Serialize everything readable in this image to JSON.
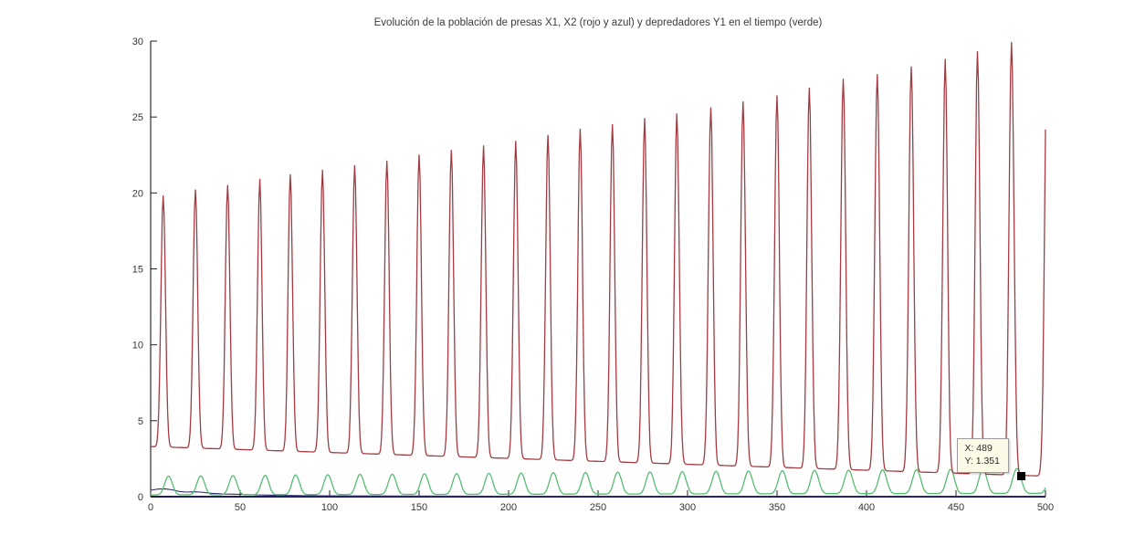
{
  "figure": {
    "title": "Evolución de la población de presas X1, X2 (rojo y azul) y depredadores Y1 en el tiempo (verde)",
    "background": "#ffffff"
  },
  "datatip": {
    "line1": "X: 489",
    "line2": "Y: 1.351",
    "background": "#fbfae6",
    "border_color": "#9c9c9c",
    "marker_color": "#000000"
  },
  "axes": {
    "x_tick_labels": [
      "0",
      "50",
      "100",
      "150",
      "200",
      "250",
      "300",
      "350",
      "400",
      "450",
      "500"
    ],
    "y_tick_labels": [
      "0",
      "5",
      "10",
      "15",
      "20",
      "25",
      "30"
    ],
    "axis_color": "#000000",
    "bottom_axis_color": "#1b1b67"
  },
  "chart_data": {
    "type": "line",
    "title": "Evolución de la población de presas X1, X2 (rojo y azul) y depredadores Y1 en el tiempo (verde)",
    "xlabel": "",
    "ylabel": "",
    "xlim": [
      0,
      500
    ],
    "ylim": [
      0,
      30
    ],
    "xticks": [
      0,
      50,
      100,
      150,
      200,
      250,
      300,
      350,
      400,
      450,
      500
    ],
    "yticks": [
      0,
      5,
      10,
      15,
      20,
      25,
      30
    ],
    "grid": false,
    "legend": "none (series identified in title: X1 rojo, X2 azul, Y1 verde)",
    "series": [
      {
        "name": "X1 presas (rojo)",
        "color": "#a33b42",
        "shape": "pulse-train",
        "sharpness": 10,
        "baseline_start": 3.3,
        "baseline_end": 1.35,
        "peaks": [
          [
            7,
            19.8
          ],
          [
            25,
            20.2
          ],
          [
            43,
            20.5
          ],
          [
            61,
            20.9
          ],
          [
            78,
            21.2
          ],
          [
            96,
            21.5
          ],
          [
            114,
            21.8
          ],
          [
            132,
            22.1
          ],
          [
            150,
            22.5
          ],
          [
            168,
            22.8
          ],
          [
            186,
            23.1
          ],
          [
            204,
            23.4
          ],
          [
            222,
            23.8
          ],
          [
            240,
            24.2
          ],
          [
            258,
            24.5
          ],
          [
            276,
            24.9
          ],
          [
            294,
            25.2
          ],
          [
            313,
            25.6
          ],
          [
            331,
            26.0
          ],
          [
            350,
            26.4
          ],
          [
            368,
            26.9
          ],
          [
            387,
            27.5
          ],
          [
            406,
            27.8
          ],
          [
            425,
            28.3
          ],
          [
            444,
            28.8
          ],
          [
            462,
            29.3
          ],
          [
            481,
            29.9
          ],
          [
            501,
            30.6
          ]
        ],
        "end_value_at_x500": 24.7
      },
      {
        "name": "Y1 depredadores (verde)",
        "color": "#55bd72",
        "shape": "pulse-train",
        "sharpness": 3.5,
        "baseline_start": 0.12,
        "baseline_end": 0.22,
        "peaks": [
          [
            10,
            1.35
          ],
          [
            28,
            1.37
          ],
          [
            46,
            1.39
          ],
          [
            64,
            1.41
          ],
          [
            81,
            1.43
          ],
          [
            99,
            1.45
          ],
          [
            117,
            1.47
          ],
          [
            135,
            1.48
          ],
          [
            153,
            1.5
          ],
          [
            171,
            1.52
          ],
          [
            189,
            1.54
          ],
          [
            207,
            1.56
          ],
          [
            225,
            1.58
          ],
          [
            243,
            1.6
          ],
          [
            261,
            1.62
          ],
          [
            279,
            1.63
          ],
          [
            297,
            1.65
          ],
          [
            316,
            1.67
          ],
          [
            334,
            1.69
          ],
          [
            353,
            1.71
          ],
          [
            371,
            1.73
          ],
          [
            390,
            1.75
          ],
          [
            409,
            1.77
          ],
          [
            428,
            1.78
          ],
          [
            447,
            1.8
          ],
          [
            465,
            1.82
          ],
          [
            484,
            1.85
          ],
          [
            504,
            1.88
          ]
        ]
      },
      {
        "name": "X2 presas (azul)",
        "color": "#2e2e6e",
        "shape": "points",
        "points": [
          [
            0,
            0.42
          ],
          [
            4,
            0.5
          ],
          [
            8,
            0.52
          ],
          [
            12,
            0.45
          ],
          [
            16,
            0.34
          ],
          [
            20,
            0.3
          ],
          [
            24,
            0.32
          ],
          [
            28,
            0.3
          ],
          [
            34,
            0.22
          ],
          [
            40,
            0.18
          ],
          [
            46,
            0.16
          ],
          [
            52,
            0.15
          ],
          [
            58,
            0.12
          ],
          [
            66,
            0.1
          ],
          [
            76,
            0.08
          ],
          [
            90,
            0.06
          ],
          [
            110,
            0.05
          ],
          [
            140,
            0.04
          ],
          [
            200,
            0.03
          ],
          [
            300,
            0.03
          ],
          [
            400,
            0.03
          ],
          [
            500,
            0.03
          ]
        ]
      }
    ],
    "datatip": {
      "x": 489,
      "y": 1.351
    }
  }
}
